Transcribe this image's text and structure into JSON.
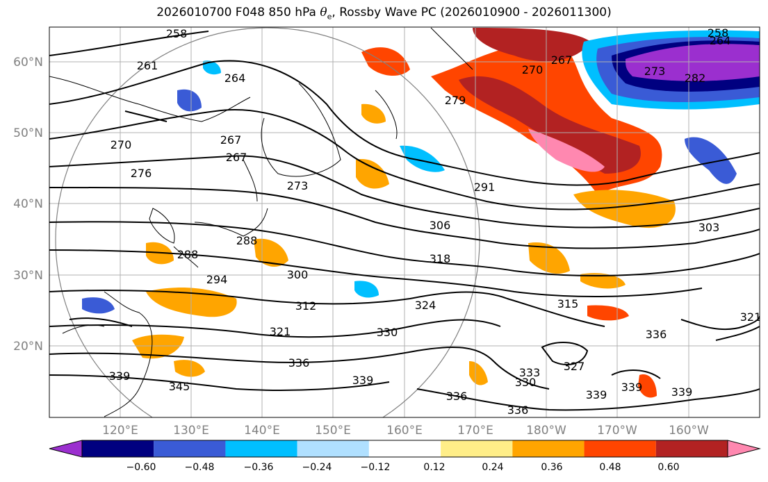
{
  "title": {
    "prefix": "2026010700 F048 850 hPa ",
    "theta": "θ",
    "theta_sub": "e",
    "suffix": ", Rossby Wave PC (2026010900 - 2026011300)"
  },
  "axes": {
    "lat_labels": [
      "60°N",
      "50°N",
      "40°N",
      "30°N",
      "20°N"
    ],
    "lon_labels": [
      "120°E",
      "130°E",
      "140°E",
      "150°E",
      "160°E",
      "170°E",
      "180°W",
      "170°W",
      "160°W"
    ]
  },
  "contour_labels": {
    "values": [
      "258",
      "261",
      "264",
      "267",
      "267",
      "270",
      "270",
      "276",
      "273",
      "279",
      "282",
      "267",
      "273",
      "258",
      "264",
      "291",
      "306",
      "303",
      "318",
      "300",
      "294",
      "312",
      "324",
      "315",
      "321",
      "336",
      "330",
      "333",
      "327",
      "330",
      "339",
      "339",
      "336",
      "336",
      "339",
      "339",
      "345",
      "339",
      "336",
      "321",
      "288",
      "288"
    ]
  },
  "colorbar": {
    "ticks": [
      "−0.60",
      "−0.48",
      "−0.36",
      "−0.24",
      "−0.12",
      "0.12",
      "0.24",
      "0.36",
      "0.48",
      "0.60"
    ],
    "colors": [
      "#9b2fcf",
      "#000080",
      "#3a5bd6",
      "#00bfff",
      "#b0e0ff",
      "#ffffff",
      "#ffee88",
      "#ffa500",
      "#ff4500",
      "#b22222",
      "#ff88b0"
    ]
  }
}
